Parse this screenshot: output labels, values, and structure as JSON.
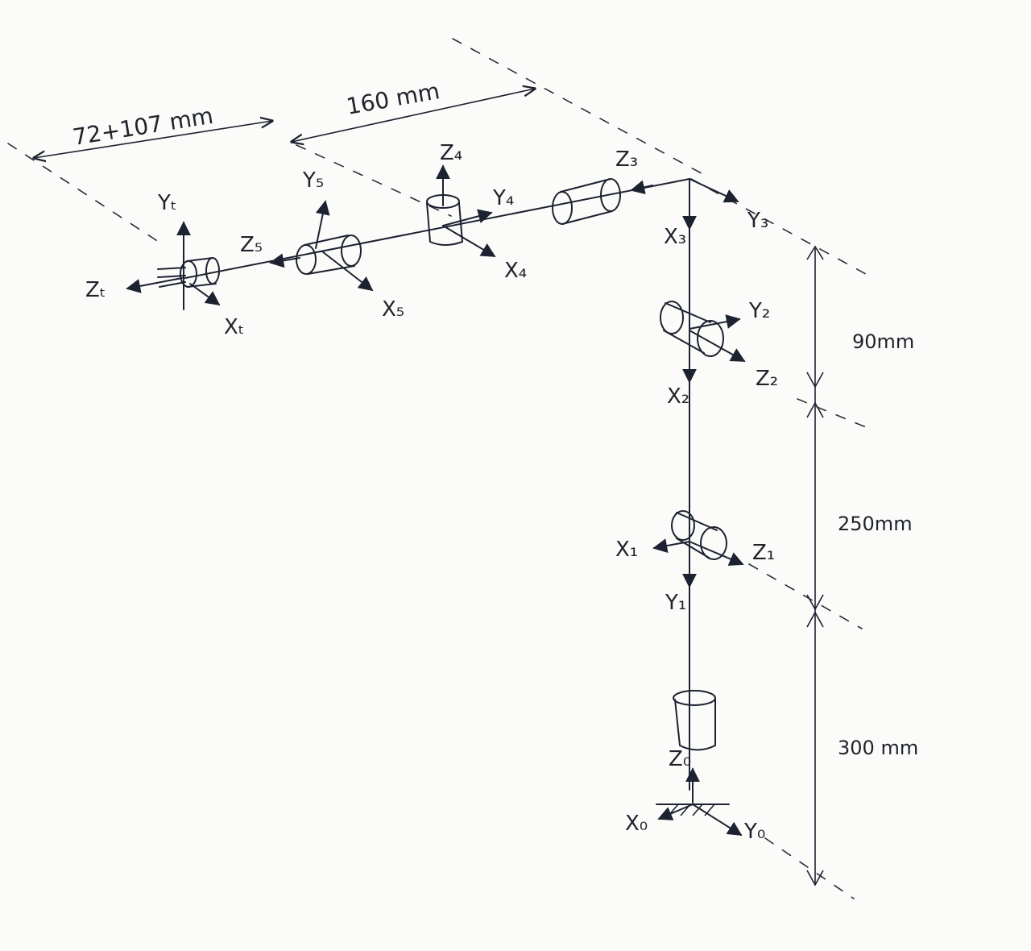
{
  "dimensions": {
    "tool_length": "72+107 mm",
    "link_length": "160 mm",
    "d_upper": "90mm",
    "d_middle": "250mm",
    "d_lower": "300 mm"
  },
  "frames": {
    "base": {
      "z": "Z₀",
      "x": "X₀",
      "y": "Y₀"
    },
    "f1": {
      "x": "X₁",
      "y": "Y₁",
      "z": "Z₁"
    },
    "f2": {
      "y": "Y₂",
      "x": "X₂",
      "z": "Z₂"
    },
    "f3": {
      "z": "Z₃",
      "y": "Y₃",
      "x": "X₃"
    },
    "f4": {
      "z": "Z₄",
      "y": "Y₄",
      "x": "X₄"
    },
    "f5": {
      "y": "Y₅",
      "z": "Z₅",
      "x": "X₅"
    },
    "tool": {
      "y": "Yₜ",
      "z": "Zₜ",
      "x": "Xₜ"
    }
  },
  "colors": {
    "ink": "#1d2230",
    "paper": "#fbfbfa"
  }
}
